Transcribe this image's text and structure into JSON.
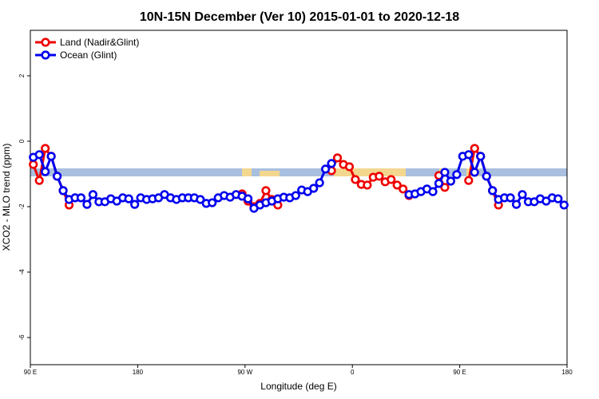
{
  "chart_data": {
    "type": "line",
    "title": "10N-15N December (Ver 10)   2015-01-01 to 2020-12-18",
    "xlabel": "Longitude (deg E)",
    "ylabel": "XCO2 - MLO trend (ppm)",
    "xlim": [
      90,
      540
    ],
    "ylim": [
      -6.83,
      3.39
    ],
    "xticks": [
      {
        "value": 90,
        "label": "90 E"
      },
      {
        "value": 180,
        "label": "180"
      },
      {
        "value": 270,
        "label": "90 W"
      },
      {
        "value": 360,
        "label": "0"
      },
      {
        "value": 450,
        "label": "90 E"
      },
      {
        "value": 540,
        "label": "180"
      }
    ],
    "yticks": [
      2,
      0,
      -2,
      -4,
      -6
    ],
    "legend": "top-left",
    "series": [
      {
        "name": "Land (Nadir&Glint)",
        "color": "#ee0000",
        "x": [
          92.5,
          97.5,
          102.5,
          107.5,
          112.5,
          117.5,
          122.5,
          195,
          267.5,
          272.5,
          277.5,
          282.5,
          287.5,
          292.5,
          297.5,
          320,
          342.5,
          347.5,
          352.5,
          357.5,
          362.5,
          367.5,
          372.5,
          377.5,
          382.5,
          387.5,
          392.5,
          397.5,
          402.5,
          407.5,
          420,
          432.5,
          437.5,
          445,
          457.5,
          462.5,
          467.5,
          472.5,
          477.5,
          482.5
        ],
        "values": [
          -0.71,
          -1.2,
          -0.22,
          -0.46,
          -1.07,
          -1.51,
          -1.95,
          null,
          -1.61,
          -1.83,
          -2.0,
          -1.9,
          -1.51,
          -1.78,
          -1.95,
          null,
          -0.9,
          -0.51,
          -0.71,
          -0.78,
          -1.17,
          -1.32,
          -1.34,
          -1.1,
          -1.07,
          -1.24,
          -1.17,
          -1.34,
          -1.46,
          -1.66,
          null,
          -1.05,
          -1.41,
          null,
          -1.2,
          -0.22,
          -0.46,
          -1.07,
          -1.51,
          -1.95
        ]
      },
      {
        "name": "Ocean (Glint)",
        "color": "#0000ee",
        "x": [
          92.5,
          97.5,
          102.5,
          107.5,
          112.5,
          117.5,
          122.5,
          127.5,
          132.5,
          137.5,
          142.5,
          147.5,
          152.5,
          157.5,
          162.5,
          167.5,
          172.5,
          177.5,
          182.5,
          187.5,
          192.5,
          197.5,
          202.5,
          207.5,
          212.5,
          217.5,
          222.5,
          227.5,
          232.5,
          237.5,
          242.5,
          247.5,
          252.5,
          257.5,
          262.5,
          267.5,
          272.5,
          277.5,
          282.5,
          287.5,
          292.5,
          297.5,
          302.5,
          307.5,
          312.5,
          317.5,
          322.5,
          327.5,
          332.5,
          337.5,
          342.5,
          375,
          407.5,
          412.5,
          417.5,
          422.5,
          427.5,
          432.5,
          437.5,
          442.5,
          447.5,
          452.5,
          457.5,
          462.5,
          467.5,
          472.5,
          477.5,
          482.5,
          487.5,
          492.5,
          497.5,
          502.5,
          507.5,
          512.5,
          517.5,
          522.5,
          527.5,
          532.5,
          537.5
        ],
        "values": [
          -0.49,
          -0.41,
          -0.93,
          -0.46,
          -1.07,
          -1.51,
          -1.78,
          -1.73,
          -1.73,
          -1.93,
          -1.63,
          -1.85,
          -1.85,
          -1.76,
          -1.83,
          -1.73,
          -1.76,
          -1.93,
          -1.73,
          -1.78,
          -1.76,
          -1.73,
          -1.63,
          -1.73,
          -1.78,
          -1.73,
          -1.73,
          -1.73,
          -1.78,
          -1.9,
          -1.88,
          -1.73,
          -1.66,
          -1.71,
          -1.63,
          -1.68,
          -1.76,
          -2.05,
          -1.95,
          -1.88,
          -1.83,
          -1.76,
          -1.71,
          -1.73,
          -1.66,
          -1.49,
          -1.54,
          -1.44,
          -1.27,
          -0.85,
          -0.68,
          null,
          -1.63,
          -1.61,
          -1.54,
          -1.46,
          -1.54,
          -1.29,
          -0.95,
          -1.22,
          -1.02,
          -0.46,
          -0.41,
          -0.95,
          -0.46,
          -1.07,
          -1.51,
          -1.78,
          -1.73,
          -1.73,
          -1.93,
          -1.63,
          -1.85,
          -1.85,
          -1.76,
          -1.83,
          -1.73,
          -1.76,
          -1.95
        ]
      }
    ]
  }
}
